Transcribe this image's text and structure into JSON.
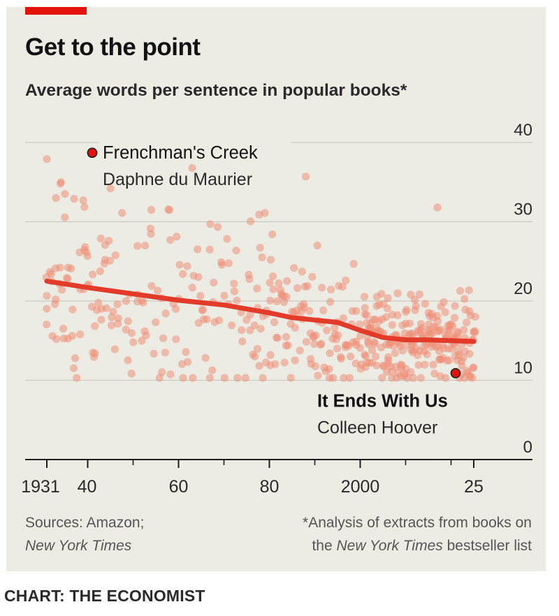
{
  "header": {
    "title": "Get to the point",
    "subtitle": "Average words per sentence in popular books*"
  },
  "footer": {
    "sources_line1": "Sources: Amazon;",
    "sources_line2": "New York Times",
    "note_line1": "*Analysis of extracts from books on",
    "note_line2_pre": "the ",
    "note_line2_em": "New York Times",
    "note_line2_post": " bestseller list"
  },
  "credit": "CHART: THE ECONOMIST",
  "colors": {
    "accent": "#e3120b",
    "trend": "#e23b2a",
    "dot": "#ef8f78",
    "highlight": "#e3120b",
    "background": "#ecece4",
    "grid": "#c8c8c0",
    "text": "#121212"
  },
  "chart_data": {
    "type": "scatter",
    "title": "Get to the point",
    "subtitle": "Average words per sentence in popular books*",
    "xlabel": "",
    "ylabel": "Average words per sentence",
    "xlim": [
      1929.5,
      2034
    ],
    "ylim": [
      0,
      40
    ],
    "y_ticks": [
      0,
      10,
      20,
      30,
      40
    ],
    "x_ticks": [
      {
        "year": 1931,
        "label": "1931"
      },
      {
        "year": 1940,
        "label": "40"
      },
      {
        "year": 1960,
        "label": "60"
      },
      {
        "year": 1980,
        "label": "80"
      },
      {
        "year": 2000,
        "label": "2000"
      },
      {
        "year": 2025,
        "label": "25"
      }
    ],
    "minor_x_ticks": [
      1950,
      1970,
      1990,
      2010,
      2020
    ],
    "trend": {
      "name": "Trend",
      "x": [
        1931,
        1940,
        1950,
        1960,
        1970,
        1980,
        1985,
        1990,
        1995,
        2000,
        2005,
        2010,
        2015,
        2020,
        2025
      ],
      "y": [
        22.5,
        21.7,
        20.9,
        20.1,
        19.5,
        18.5,
        17.9,
        17.6,
        17.3,
        16.3,
        15.4,
        15.1,
        15.1,
        15.0,
        14.9
      ]
    },
    "highlights": [
      {
        "name": "Frenchman's Creek",
        "author": "Daphne du Maurier",
        "x": 1941,
        "y": 38.7
      },
      {
        "name": "It Ends With Us",
        "author": "Colleen Hoover",
        "x": 2021,
        "y": 10.9
      }
    ],
    "scatter": {
      "seed": 7,
      "points_per_year": [
        {
          "from": 1931,
          "to": 1945,
          "n": 4
        },
        {
          "from": 1946,
          "to": 1975,
          "n": 3
        },
        {
          "from": 1976,
          "to": 2000,
          "n": 5
        },
        {
          "from": 2001,
          "to": 2025,
          "n": 9
        }
      ],
      "extra_points": [
        {
          "x": 1931,
          "y": 37.9
        },
        {
          "x": 1933,
          "y": 33
        },
        {
          "x": 1935,
          "y": 33.5
        },
        {
          "x": 1937,
          "y": 32.9
        },
        {
          "x": 1939,
          "y": 32.7
        },
        {
          "x": 1934,
          "y": 34.8
        },
        {
          "x": 1945,
          "y": 34.2
        },
        {
          "x": 1954,
          "y": 31.5
        },
        {
          "x": 1958,
          "y": 31.5
        },
        {
          "x": 1963,
          "y": 36.8
        },
        {
          "x": 1967,
          "y": 29.7
        },
        {
          "x": 1979,
          "y": 31.1
        },
        {
          "x": 1988,
          "y": 35.7
        },
        {
          "x": 2017,
          "y": 31.8
        }
      ]
    }
  }
}
